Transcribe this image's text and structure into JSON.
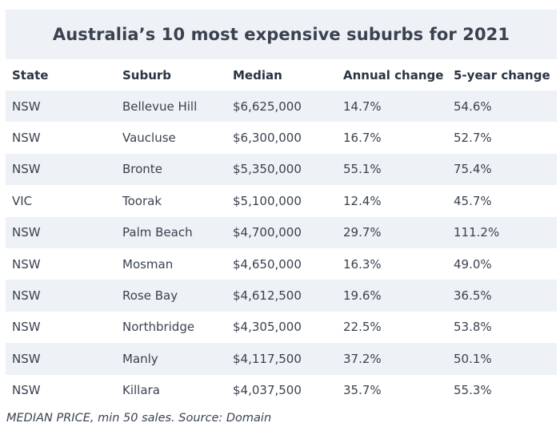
{
  "chart_data": {
    "type": "table",
    "title": "Australia’s 10 most expensive suburbs for 2021",
    "columns": [
      "State",
      "Suburb",
      "Median",
      "Annual change",
      "5-year change"
    ],
    "rows": [
      [
        "NSW",
        "Bellevue Hill",
        "$6,625,000",
        "14.7%",
        "54.6%"
      ],
      [
        "NSW",
        "Vaucluse",
        "$6,300,000",
        "16.7%",
        "52.7%"
      ],
      [
        "NSW",
        "Bronte",
        "$5,350,000",
        "55.1%",
        "75.4%"
      ],
      [
        "VIC",
        "Toorak",
        "$5,100,000",
        "12.4%",
        "45.7%"
      ],
      [
        "NSW",
        "Palm Beach",
        "$4,700,000",
        "29.7%",
        "111.2%"
      ],
      [
        "NSW",
        "Mosman",
        "$4,650,000",
        "16.3%",
        "49.0%"
      ],
      [
        "NSW",
        "Rose Bay",
        "$4,612,500",
        "19.6%",
        "36.5%"
      ],
      [
        "NSW",
        "Northbridge",
        "$4,305,000",
        "22.5%",
        "53.8%"
      ],
      [
        "NSW",
        "Manly",
        "$4,117,500",
        "37.2%",
        "50.1%"
      ],
      [
        "NSW",
        "Killara",
        "$4,037,500",
        "35.7%",
        "55.3%"
      ]
    ],
    "source": "MEDIAN PRICE, min 50 sales. Source: Domain"
  },
  "colors": {
    "band": "#eef1f5",
    "text": "#2b3442",
    "background": "#ffffff"
  }
}
